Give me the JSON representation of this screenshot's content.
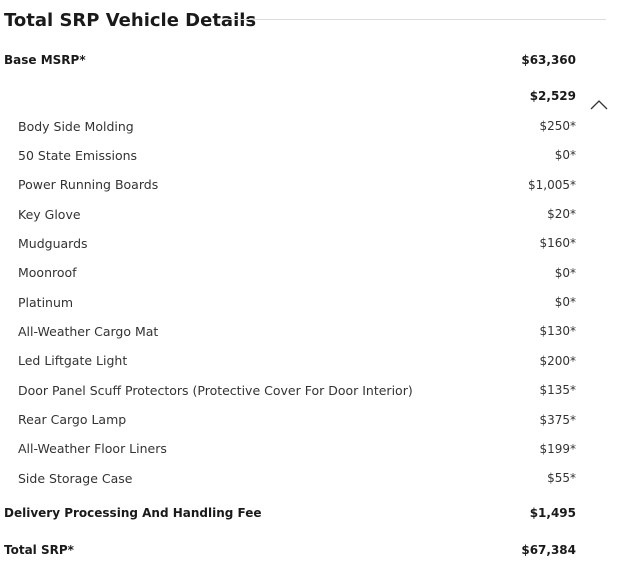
{
  "header": {
    "title": "Total SRP Vehicle Details"
  },
  "base": {
    "label": "Base MSRP*",
    "price": "$63,360"
  },
  "options": {
    "total": "$2,529",
    "items": [
      [
        "Body Side Molding",
        "$250*"
      ],
      [
        "50 State Emissions",
        "$0*"
      ],
      [
        "Power Running Boards",
        "$1,005*"
      ],
      [
        "Key Glove",
        "$20*"
      ],
      [
        "Mudguards",
        "$160*"
      ],
      [
        "Moonroof",
        "$0*"
      ],
      [
        "Platinum",
        "$0*"
      ],
      [
        "All-Weather Cargo Mat",
        "$130*"
      ],
      [
        "Led Liftgate Light",
        "$200*"
      ],
      [
        "Door Panel Scuff Protectors (Protective Cover For Door Interior)",
        "$135*"
      ],
      [
        "Rear Cargo Lamp",
        "$375*"
      ],
      [
        "All-Weather Floor Liners",
        "$199*"
      ],
      [
        "Side Storage Case",
        "$55*"
      ]
    ]
  },
  "delivery": {
    "label": "Delivery Processing And Handling Fee",
    "price": "$1,495"
  },
  "total": {
    "label": "Total SRP*",
    "price": "$67,384"
  }
}
